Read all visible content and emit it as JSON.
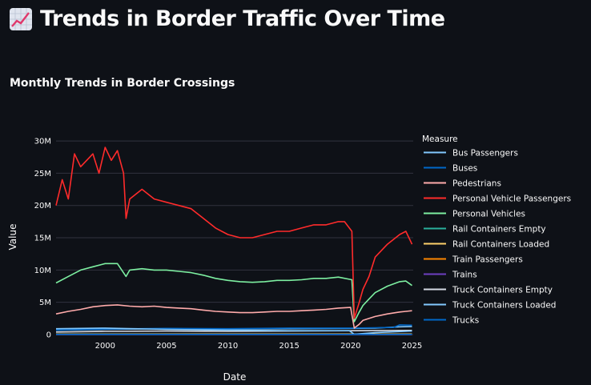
{
  "page": {
    "title": "Trends in Border Traffic Over Time",
    "title_icon": "chart-increasing-icon"
  },
  "chart_data": {
    "type": "line",
    "title": "Monthly Trends in Border Crossings",
    "xlabel": "Date",
    "ylabel": "Value",
    "legend_title": "Measure",
    "legend_position": "right",
    "grid": true,
    "x_ticks": [
      "2000",
      "2005",
      "2010",
      "2015",
      "2020",
      "2025"
    ],
    "y_ticks": [
      "0",
      "5M",
      "10M",
      "15M",
      "20M",
      "25M",
      "30M"
    ],
    "xlim": [
      1996.0,
      2025.1
    ],
    "ylim": [
      0,
      31000000
    ],
    "series": [
      {
        "name": "Bus Passengers",
        "color": "#83c9ff",
        "x": [
          1996,
          2000,
          2005,
          2010,
          2015,
          2019.9,
          2020.3,
          2022,
          2025
        ],
        "values": [
          900000,
          1000000,
          800000,
          700000,
          600000,
          600000,
          50000,
          300000,
          550000
        ]
      },
      {
        "name": "Buses",
        "color": "#0068c9",
        "x": [
          1996,
          2025
        ],
        "values": [
          30000,
          25000
        ]
      },
      {
        "name": "Pedestrians",
        "color": "#ffabab",
        "x": [
          1996,
          1997,
          1998,
          1999,
          2000,
          2001,
          2002,
          2003,
          2004,
          2005,
          2006,
          2007,
          2008,
          2009,
          2010,
          2011,
          2012,
          2013,
          2014,
          2015,
          2016,
          2017,
          2018,
          2019,
          2020.0,
          2020.3,
          2020.7,
          2021,
          2022,
          2023,
          2024,
          2024.5,
          2025
        ],
        "values": [
          3200000,
          3600000,
          3900000,
          4300000,
          4500000,
          4600000,
          4400000,
          4300000,
          4400000,
          4200000,
          4100000,
          4000000,
          3800000,
          3600000,
          3500000,
          3400000,
          3400000,
          3500000,
          3600000,
          3600000,
          3700000,
          3800000,
          3900000,
          4100000,
          4200000,
          1000000,
          1600000,
          2200000,
          2800000,
          3200000,
          3500000,
          3600000,
          3700000
        ]
      },
      {
        "name": "Personal Vehicle Passengers",
        "color": "#ff2b2b",
        "x": [
          1996,
          1996.5,
          1997,
          1997.5,
          1998,
          1999,
          1999.5,
          2000,
          2000.5,
          2001,
          2001.5,
          2001.7,
          2002,
          2003,
          2004,
          2005,
          2006,
          2007,
          2008,
          2009,
          2010,
          2011,
          2012,
          2013,
          2014,
          2015,
          2016,
          2017,
          2018,
          2019,
          2019.5,
          2020.1,
          2020.3,
          2020.7,
          2021,
          2021.5,
          2022,
          2023,
          2024,
          2024.5,
          2025
        ],
        "values": [
          20000000,
          24000000,
          21000000,
          28000000,
          26000000,
          28000000,
          25000000,
          29000000,
          27000000,
          28500000,
          25000000,
          18000000,
          21000000,
          22500000,
          21000000,
          20500000,
          20000000,
          19500000,
          18000000,
          16500000,
          15500000,
          15000000,
          15000000,
          15500000,
          16000000,
          16000000,
          16500000,
          17000000,
          17000000,
          17500000,
          17500000,
          16000000,
          2500000,
          5000000,
          7000000,
          9000000,
          12000000,
          14000000,
          15500000,
          16000000,
          14000000
        ]
      },
      {
        "name": "Personal Vehicles",
        "color": "#7defa1",
        "x": [
          1996,
          1997,
          1998,
          1999,
          2000,
          2001,
          2001.7,
          2002,
          2003,
          2004,
          2005,
          2006,
          2007,
          2008,
          2009,
          2010,
          2011,
          2012,
          2013,
          2014,
          2015,
          2016,
          2017,
          2018,
          2019,
          2020.1,
          2020.3,
          2020.7,
          2021,
          2021.5,
          2022,
          2023,
          2024,
          2024.5,
          2025
        ],
        "values": [
          8000000,
          9000000,
          10000000,
          10500000,
          11000000,
          11000000,
          9000000,
          10000000,
          10200000,
          10000000,
          10000000,
          9800000,
          9600000,
          9200000,
          8700000,
          8400000,
          8200000,
          8100000,
          8200000,
          8400000,
          8400000,
          8500000,
          8700000,
          8700000,
          8900000,
          8500000,
          2000000,
          3500000,
          4500000,
          5500000,
          6500000,
          7500000,
          8200000,
          8300000,
          7600000
        ]
      },
      {
        "name": "Rail Containers Empty",
        "color": "#29b09d",
        "x": [
          1996,
          2025
        ],
        "values": [
          60000,
          70000
        ]
      },
      {
        "name": "Rail Containers Loaded",
        "color": "#ffd16a",
        "x": [
          1996,
          2025
        ],
        "values": [
          80000,
          90000
        ]
      },
      {
        "name": "Train Passengers",
        "color": "#ff8700",
        "x": [
          1996,
          2025
        ],
        "values": [
          20000,
          15000
        ]
      },
      {
        "name": "Trains",
        "color": "#6d3fc0",
        "x": [
          1996,
          2025
        ],
        "values": [
          3000,
          3000
        ]
      },
      {
        "name": "Truck Containers Empty",
        "color": "#d5dae5",
        "x": [
          1996,
          2000,
          2005,
          2010,
          2015,
          2020,
          2025
        ],
        "values": [
          400000,
          500000,
          550000,
          500000,
          550000,
          600000,
          650000
        ]
      },
      {
        "name": "Truck Containers Loaded",
        "color": "#83c9ff",
        "x": [
          1996,
          2000,
          2005,
          2010,
          2015,
          2020,
          2022,
          2024,
          2025
        ],
        "values": [
          700000,
          800000,
          900000,
          850000,
          900000,
          950000,
          1000000,
          1200000,
          1250000
        ]
      },
      {
        "name": "Trucks",
        "color": "#0068c9",
        "x": [
          1996,
          2000,
          2005,
          2010,
          2015,
          2020,
          2022,
          2023.5,
          2024,
          2025
        ],
        "values": [
          700000,
          850000,
          950000,
          900000,
          1000000,
          1000000,
          1050000,
          1100000,
          1500000,
          1450000
        ]
      }
    ]
  }
}
